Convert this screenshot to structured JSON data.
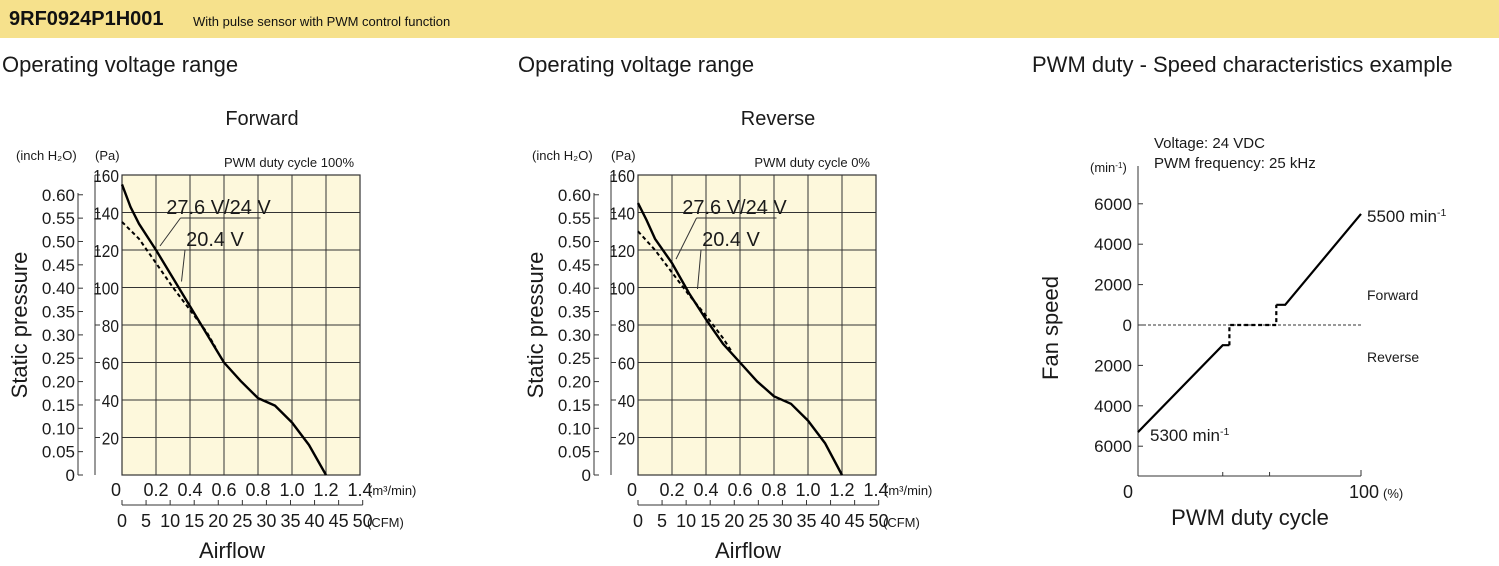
{
  "header": {
    "model": "9RF0924P1H001",
    "description": "With pulse sensor with PWM control function"
  },
  "section_titles": [
    "Operating voltage range",
    "Operating voltage range",
    "PWM duty - Speed characteristics example"
  ],
  "colors": {
    "banner": "#f6e18c",
    "plot_background": "#fdf8dc",
    "grid": "#333333",
    "curve": "#000000"
  },
  "chart_data": [
    {
      "type": "line",
      "title": "Forward",
      "annotation": "PWM duty cycle 100%",
      "ylabel": "Static pressure",
      "ylabel_units": [
        "(inch H₂O)",
        "(Pa)"
      ],
      "xlabel": "Airflow",
      "xunit_primary": "(m³/min)",
      "xunit_secondary": "(CFM)",
      "xlim": [
        0,
        1.4
      ],
      "ylim": [
        0,
        160
      ],
      "x_ticks": [
        "0",
        "0.2",
        "0.4",
        "0.6",
        "0.8",
        "1.0",
        "1.2",
        "1.4"
      ],
      "cfm_ticks": [
        "0",
        "5",
        "10",
        "15",
        "20",
        "25",
        "30",
        "35",
        "40",
        "45",
        "50"
      ],
      "y_ticks_pa": [
        "20",
        "40",
        "60",
        "80",
        "100",
        "120",
        "140",
        "160"
      ],
      "y_ticks_inch": [
        "0",
        "0.05",
        "0.10",
        "0.15",
        "0.20",
        "0.25",
        "0.30",
        "0.35",
        "0.40",
        "0.45",
        "0.50",
        "0.55",
        "0.60"
      ],
      "grid": true,
      "series": [
        {
          "name": "27.6 V/24 V",
          "style": "solid",
          "x": [
            0,
            0.05,
            0.1,
            0.2,
            0.3,
            0.4,
            0.5,
            0.6,
            0.7,
            0.8,
            0.9,
            1.0,
            1.1,
            1.2
          ],
          "y": [
            155,
            143,
            134,
            120,
            105,
            90,
            75,
            60,
            50,
            41,
            37,
            28,
            16,
            0
          ]
        },
        {
          "name": "20.4 V",
          "style": "dashed",
          "x": [
            0,
            0.1,
            0.2,
            0.3,
            0.4,
            0.5,
            0.55
          ],
          "y": [
            135,
            126,
            113,
            100,
            88,
            76,
            68
          ]
        }
      ]
    },
    {
      "type": "line",
      "title": "Reverse",
      "annotation": "PWM duty cycle 0%",
      "ylabel": "Static pressure",
      "ylabel_units": [
        "(inch H₂O)",
        "(Pa)"
      ],
      "xlabel": "Airflow",
      "xunit_primary": "(m³/min)",
      "xunit_secondary": "(CFM)",
      "xlim": [
        0,
        1.4
      ],
      "ylim": [
        0,
        160
      ],
      "x_ticks": [
        "0",
        "0.2",
        "0.4",
        "0.6",
        "0.8",
        "1.0",
        "1.2",
        "1.4"
      ],
      "cfm_ticks": [
        "0",
        "5",
        "10",
        "15",
        "20",
        "25",
        "30",
        "35",
        "40",
        "45",
        "50"
      ],
      "y_ticks_pa": [
        "20",
        "40",
        "60",
        "80",
        "100",
        "120",
        "140",
        "160"
      ],
      "y_ticks_inch": [
        "0",
        "0.05",
        "0.10",
        "0.15",
        "0.20",
        "0.25",
        "0.30",
        "0.35",
        "0.40",
        "0.45",
        "0.50",
        "0.55",
        "0.60"
      ],
      "grid": true,
      "series": [
        {
          "name": "27.6 V/24 V",
          "style": "solid",
          "x": [
            0,
            0.05,
            0.1,
            0.2,
            0.3,
            0.4,
            0.5,
            0.6,
            0.7,
            0.8,
            0.9,
            1.0,
            1.1,
            1.2
          ],
          "y": [
            145,
            136,
            126,
            113,
            97,
            83,
            70,
            60,
            50,
            42,
            38,
            29,
            17,
            0
          ]
        },
        {
          "name": "20.4 V",
          "style": "dashed",
          "x": [
            0,
            0.1,
            0.2,
            0.3,
            0.4,
            0.5,
            0.55
          ],
          "y": [
            130,
            120,
            108,
            96,
            85,
            73,
            66
          ]
        }
      ]
    },
    {
      "type": "line",
      "title": "",
      "annotations": [
        "Voltage: 24 VDC",
        "PWM frequency: 25 kHz"
      ],
      "ylabel": "Fan speed",
      "yunit": "(min⁻¹)",
      "xlabel": "PWM duty cycle",
      "xunit": "(%)",
      "xlim": [
        0,
        100
      ],
      "ylim": [
        -6000,
        6000
      ],
      "x_ticks": [
        "0",
        "100"
      ],
      "y_ticks": [
        "6000",
        "4000",
        "2000",
        "0",
        "2000",
        "4000",
        "6000"
      ],
      "region_labels": [
        "Forward",
        "Reverse"
      ],
      "end_labels": [
        "5500 min⁻¹",
        "5300 min⁻¹"
      ],
      "series": [
        {
          "name": "",
          "style": "solid",
          "x": [
            0,
            38,
            41
          ],
          "y": [
            -5300,
            -1000,
            -1000
          ]
        },
        {
          "name": "",
          "style": "dashed",
          "x": [
            41,
            41,
            62,
            62
          ],
          "y": [
            -1000,
            0,
            0,
            1000
          ]
        },
        {
          "name": "",
          "style": "solid",
          "x": [
            62,
            66,
            100
          ],
          "y": [
            1000,
            1000,
            5500
          ]
        }
      ]
    }
  ]
}
